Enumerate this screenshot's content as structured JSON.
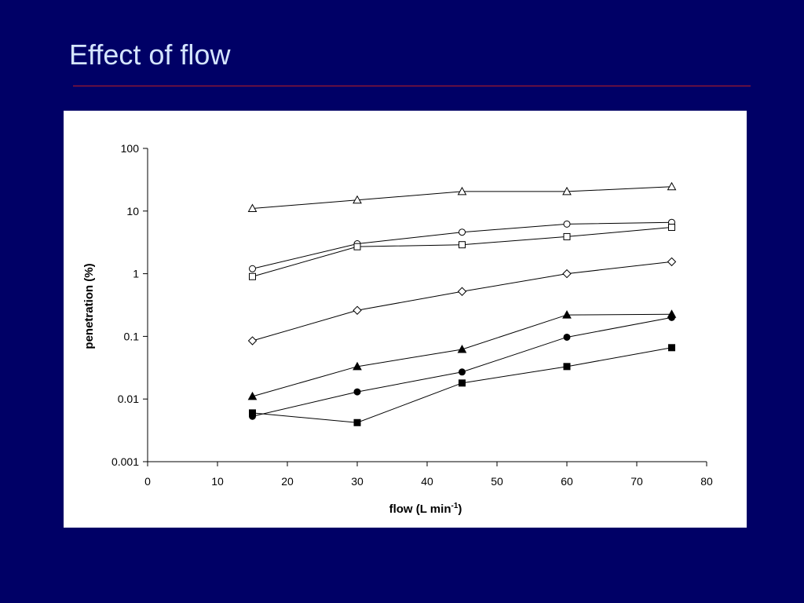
{
  "slide": {
    "title": "Effect of flow"
  },
  "chart_data": {
    "type": "line",
    "xlabel": "flow (L min",
    "xlabel_superscript": "-1",
    "xlabel_suffix": ")",
    "ylabel": "penetration (%)",
    "xlim": [
      0,
      80
    ],
    "ylim": [
      0.001,
      100
    ],
    "yscale": "log",
    "grid": false,
    "legend": "none",
    "x_ticks": [
      "0",
      "10",
      "20",
      "30",
      "40",
      "50",
      "60",
      "70",
      "80"
    ],
    "y_ticks": [
      "0.001",
      "0.01",
      "0.1",
      "1",
      "10",
      "100"
    ],
    "x": [
      15,
      30,
      45,
      60,
      75
    ],
    "series": [
      {
        "marker": "open-triangle",
        "values": [
          11,
          15,
          20.5,
          20.5,
          24.5
        ]
      },
      {
        "marker": "open-circle",
        "values": [
          1.2,
          3.0,
          4.6,
          6.2,
          6.6
        ]
      },
      {
        "marker": "open-square",
        "values": [
          0.9,
          2.7,
          2.9,
          3.9,
          5.5
        ]
      },
      {
        "marker": "open-diamond",
        "values": [
          0.085,
          0.26,
          0.52,
          1.0,
          1.55
        ]
      },
      {
        "marker": "filled-triangle",
        "values": [
          0.011,
          0.033,
          0.062,
          0.22,
          0.225
        ]
      },
      {
        "marker": "filled-circle",
        "values": [
          0.0053,
          0.013,
          0.027,
          0.097,
          0.2
        ]
      },
      {
        "marker": "filled-square",
        "values": [
          0.006,
          0.0042,
          0.018,
          0.033,
          0.066
        ]
      }
    ]
  }
}
